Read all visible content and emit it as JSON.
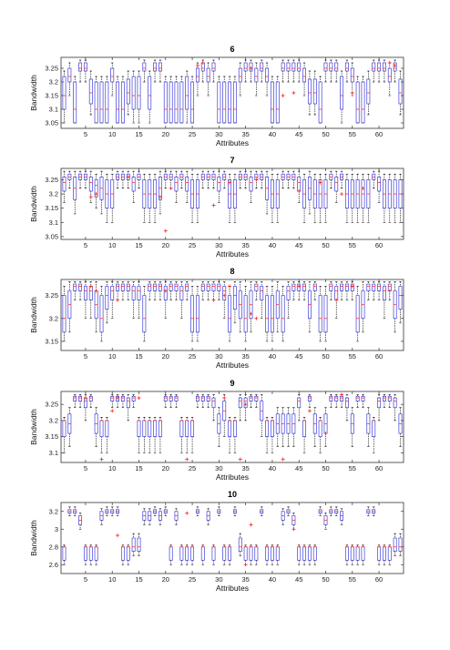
{
  "figure": {
    "colors": {
      "box": "#4040d8",
      "median": "#ff3030",
      "outlier": "#ff2020",
      "whisker": "#000000",
      "axis": "#333333"
    }
  },
  "chart_data": [
    {
      "type": "boxplot",
      "title": "6",
      "xlabel": "Attributes",
      "ylabel": "Bandwidth",
      "n": 64,
      "xticks": [
        5,
        10,
        15,
        20,
        25,
        30,
        35,
        40,
        45,
        50,
        55,
        60
      ],
      "ylim": [
        3.03,
        3.29
      ],
      "yticks": [
        3.05,
        3.1,
        3.15,
        3.2,
        3.25
      ],
      "yticklabels": [
        "3.05",
        "3.1",
        "3.15",
        "3.2",
        "3.25"
      ],
      "presets": {
        "A": {
          "lw": 3.05,
          "q1": 3.05,
          "med": 3.1,
          "q3": 3.2,
          "uw": 3.22
        },
        "B": {
          "lw": 3.05,
          "q1": 3.1,
          "med": 3.15,
          "q3": 3.22,
          "uw": 3.24
        },
        "C": {
          "lw": 3.2,
          "q1": 3.24,
          "med": 3.25,
          "q3": 3.27,
          "uw": 3.28
        },
        "D": {
          "lw": 3.15,
          "q1": 3.2,
          "med": 3.22,
          "q3": 3.25,
          "uw": 3.27
        },
        "E": {
          "lw": 3.08,
          "q1": 3.12,
          "med": 3.16,
          "q3": 3.21,
          "uw": 3.24
        }
      },
      "codes": "BDACCEAAADAAEBBCBCCAAAABADCDCAAAADCCDCDAACCCCDEEACCCBCDAAECCCDCE",
      "outliers": [
        [
          26,
          3.26
        ],
        [
          27,
          3.27
        ],
        [
          36,
          3.25
        ],
        [
          42,
          3.15
        ],
        [
          44,
          3.16
        ],
        [
          55,
          3.16
        ],
        [
          62,
          3.27
        ],
        [
          63,
          3.26
        ]
      ]
    },
    {
      "type": "boxplot",
      "title": "7",
      "xlabel": "Attributes",
      "ylabel": "Bandwidth",
      "n": 64,
      "xticks": [
        5,
        10,
        15,
        20,
        25,
        30,
        35,
        40,
        45,
        50,
        55,
        60
      ],
      "ylim": [
        3.04,
        3.29
      ],
      "yticks": [
        3.05,
        3.1,
        3.15,
        3.2,
        3.25
      ],
      "yticklabels": [
        "3.05",
        "3.1",
        "3.15",
        "3.2",
        "3.25"
      ],
      "presets": {
        "A": {
          "lw": 3.1,
          "q1": 3.15,
          "med": 3.2,
          "q3": 3.25,
          "uw": 3.27
        },
        "B": {
          "lw": 3.13,
          "q1": 3.18,
          "med": 3.22,
          "q3": 3.26,
          "uw": 3.28
        },
        "C": {
          "lw": 3.22,
          "q1": 3.25,
          "med": 3.26,
          "q3": 3.27,
          "uw": 3.28
        },
        "D": {
          "lw": 3.17,
          "q1": 3.21,
          "med": 3.24,
          "q3": 3.26,
          "uw": 3.28
        },
        "E": {
          "lw": 3.15,
          "q1": 3.19,
          "med": 3.23,
          "q3": 3.25,
          "uw": 3.27
        }
      },
      "codes": "DCBCCDEBAACCCDCAAABCCDCDAACCCDCAACCDCCBAACCCDABAAACDCAAAAACDAAAA",
      "outliers": [
        [
          6,
          3.19
        ],
        [
          7,
          3.2
        ],
        [
          13,
          3.26
        ],
        [
          19,
          3.19
        ],
        [
          20,
          3.07
        ],
        [
          21,
          3.22
        ],
        [
          29,
          3.16
        ],
        [
          32,
          3.24
        ],
        [
          37,
          3.25
        ],
        [
          45,
          3.21
        ],
        [
          49,
          3.24
        ],
        [
          53,
          3.2
        ],
        [
          57,
          3.22
        ]
      ]
    },
    {
      "type": "boxplot",
      "title": "8",
      "xlabel": "Attributes",
      "ylabel": "Bandwidth",
      "n": 64,
      "xticks": [
        5,
        10,
        15,
        20,
        25,
        30,
        35,
        40,
        45,
        50,
        55,
        60
      ],
      "ylim": [
        3.13,
        3.285
      ],
      "yticks": [
        3.15,
        3.2,
        3.25
      ],
      "yticklabels": [
        "3.15",
        "3.2",
        "3.25"
      ],
      "presets": {
        "A": {
          "lw": 3.15,
          "q1": 3.17,
          "med": 3.2,
          "q3": 3.25,
          "uw": 3.27
        },
        "B": {
          "lw": 3.17,
          "q1": 3.2,
          "med": 3.23,
          "q3": 3.26,
          "uw": 3.28
        },
        "C": {
          "lw": 3.24,
          "q1": 3.26,
          "med": 3.27,
          "q3": 3.275,
          "uw": 3.28
        },
        "D": {
          "lw": 3.2,
          "q1": 3.24,
          "med": 3.26,
          "q3": 3.27,
          "uw": 3.28
        },
        "E": {
          "lw": 3.19,
          "q1": 3.22,
          "med": 3.25,
          "q3": 3.27,
          "uw": 3.28
        }
      },
      "codes": "ABCCDDBAEDCCCDDACCCDCCDCAACCCCDAEBABCDAABADCCCBCAACDCCCABCCCDCBE",
      "outliers": [
        [
          6,
          3.27
        ],
        [
          7,
          3.26
        ],
        [
          11,
          3.24
        ],
        [
          20,
          3.26
        ],
        [
          29,
          3.24
        ],
        [
          31,
          3.25
        ],
        [
          32,
          3.27
        ],
        [
          36,
          3.21
        ],
        [
          37,
          3.2
        ],
        [
          45,
          3.27
        ],
        [
          52,
          3.24
        ],
        [
          55,
          3.27
        ],
        [
          62,
          3.26
        ]
      ]
    },
    {
      "type": "boxplot",
      "title": "9",
      "xlabel": "Attributes",
      "ylabel": "Bandwidth",
      "n": 64,
      "xticks": [
        5,
        10,
        15,
        20,
        25,
        30,
        35,
        40,
        45,
        50,
        55,
        60
      ],
      "ylim": [
        3.07,
        3.29
      ],
      "yticks": [
        3.1,
        3.15,
        3.2,
        3.25
      ],
      "yticklabels": [
        "3.1",
        "3.15",
        "3.2",
        "3.25"
      ],
      "presets": {
        "A": {
          "lw": 3.1,
          "q1": 3.15,
          "med": 3.2,
          "q3": 3.2,
          "uw": 3.21
        },
        "B": {
          "lw": 3.12,
          "q1": 3.16,
          "med": 3.19,
          "q3": 3.22,
          "uw": 3.24
        },
        "C": {
          "lw": 3.24,
          "q1": 3.26,
          "med": 3.27,
          "q3": 3.275,
          "uw": 3.28
        },
        "D": {
          "lw": 3.2,
          "q1": 3.24,
          "med": 3.26,
          "q3": 3.27,
          "uw": 3.28
        },
        "E": {
          "lw": 3.15,
          "q1": 3.2,
          "med": 3.23,
          "q3": 3.26,
          "uw": 3.28
        }
      },
      "codes": "ABCCDCBAACCCDCAAAAACCCAAACCCDBEAADDCCEAABBBBDACBABCCCDBCCBADCCDB",
      "outliers": [
        [
          5,
          3.27
        ],
        [
          8,
          3.08
        ],
        [
          10,
          3.23
        ],
        [
          11,
          3.27
        ],
        [
          15,
          3.27
        ],
        [
          24,
          3.08
        ],
        [
          31,
          3.27
        ],
        [
          34,
          3.08
        ],
        [
          35,
          3.25
        ],
        [
          42,
          3.08
        ],
        [
          47,
          3.23
        ],
        [
          50,
          3.16
        ],
        [
          53,
          3.28
        ]
      ]
    },
    {
      "type": "boxplot",
      "title": "10",
      "xlabel": "Attributes",
      "ylabel": "Bandwidth",
      "n": 64,
      "xticks": [
        5,
        10,
        15,
        20,
        25,
        30,
        35,
        40,
        45,
        50,
        55,
        60
      ],
      "ylim": [
        2.5,
        3.3
      ],
      "yticks": [
        2.6,
        2.8,
        3,
        3.2
      ],
      "yticklabels": [
        "2.6",
        "2.8",
        "3",
        "3.2"
      ],
      "presets": {
        "A": {
          "lw": 2.6,
          "q1": 2.65,
          "med": 2.8,
          "q3": 2.8,
          "uw": 2.82
        },
        "B": {
          "lw": 3.15,
          "q1": 3.18,
          "med": 3.2,
          "q3": 3.22,
          "uw": 3.25
        },
        "C": {
          "lw": 3.05,
          "q1": 3.1,
          "med": 3.15,
          "q3": 3.2,
          "uw": 3.23
        },
        "D": {
          "lw": 3.0,
          "q1": 3.05,
          "med": 3.1,
          "q3": 3.15,
          "uw": 3.18
        },
        "E": {
          "lw": 2.7,
          "q1": 2.75,
          "med": 2.8,
          "q3": 2.9,
          "uw": 2.95
        }
      },
      "codes": "ABBDAAACBBBAAEECCBCBACAAABACABAABEAAABAAACBDAAAABDBBCAAAABBAAAEE",
      "outliers": [
        [
          11,
          2.93
        ],
        [
          24,
          3.18
        ],
        [
          35,
          2.6
        ],
        [
          36,
          3.05
        ],
        [
          44,
          3.0
        ]
      ]
    }
  ]
}
